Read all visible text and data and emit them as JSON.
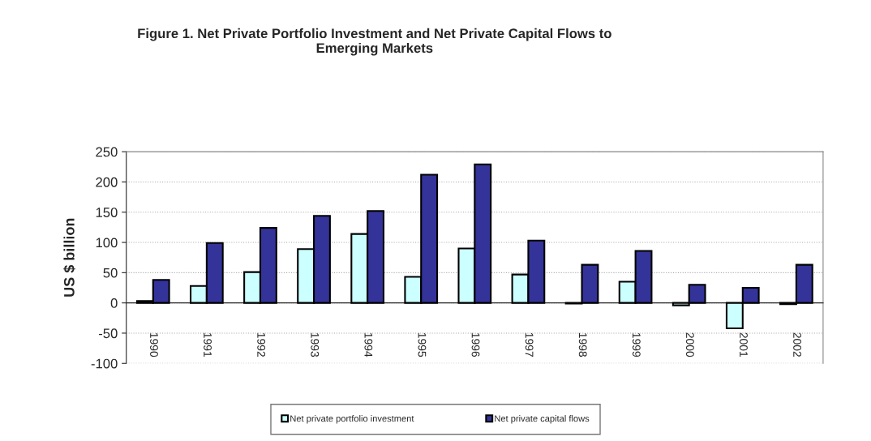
{
  "chart_data": {
    "type": "bar",
    "title": "Figure 1. Net Private Portfolio Investment and Net Private Capital Flows to\nEmerging Markets",
    "ylabel": "US $ billion",
    "categories": [
      "1990",
      "1991",
      "1992",
      "1993",
      "1994",
      "1995",
      "1996",
      "1997",
      "1998",
      "1999",
      "2000",
      "2001",
      "2002"
    ],
    "series": [
      {
        "name": "Net private portfolio investment",
        "color": "#ccffff",
        "values": [
          3,
          28,
          51,
          89,
          114,
          43,
          90,
          47,
          -1,
          35,
          -4,
          -42,
          -2
        ]
      },
      {
        "name": "Net private capital flows",
        "color": "#333399",
        "values": [
          38,
          99,
          124,
          144,
          152,
          212,
          229,
          103,
          63,
          86,
          30,
          25,
          63
        ]
      }
    ],
    "ylim": [
      -100,
      250
    ],
    "yticks": [
      -100,
      -50,
      0,
      50,
      100,
      150,
      200,
      250
    ],
    "grid": "y",
    "legend": "bottom"
  }
}
